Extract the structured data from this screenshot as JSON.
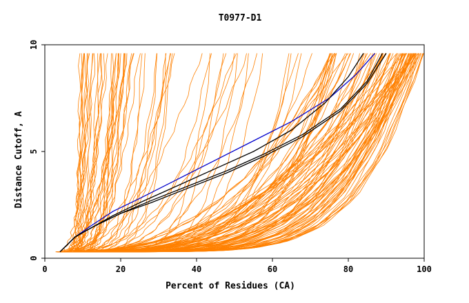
{
  "chart_data": {
    "type": "line",
    "title": "T0977-D1",
    "xlabel": "Percent of Residues (CA)",
    "ylabel": "Distance Cutoff, A",
    "xlim": [
      0,
      100
    ],
    "ylim": [
      0,
      10
    ],
    "x_ticks": [
      "0",
      "20",
      "40",
      "60",
      "80",
      "100"
    ],
    "y_ticks": [
      "0",
      "5",
      "10"
    ],
    "grid": false,
    "legend": "none",
    "colors": {
      "models": "#ff8000",
      "highlight_blue": "#0000cc",
      "highlight_black": "#000000"
    },
    "series_groups": [
      {
        "color": "models",
        "count": 150,
        "endpoint_range_at_cutoff_9_6": [
          9,
          100
        ],
        "note_values": "curves start near x=3-8 at y=0.3 and rise to y=9.6"
      },
      {
        "color": "highlight_blue",
        "count": 1
      },
      {
        "color": "highlight_black",
        "count": 3
      }
    ],
    "series": [
      {
        "color": "#0000cc",
        "x": [
          4,
          8,
          12,
          18,
          25,
          35,
          45,
          55,
          65,
          75,
          82,
          87
        ],
        "y": [
          0.3,
          1.0,
          1.5,
          2.2,
          2.8,
          3.7,
          4.6,
          5.5,
          6.4,
          7.5,
          8.6,
          9.6
        ]
      },
      {
        "color": "#000000",
        "x": [
          4,
          8,
          12,
          18,
          25,
          35,
          45,
          55,
          65,
          74,
          80,
          84
        ],
        "y": [
          0.3,
          1.0,
          1.4,
          2.0,
          2.6,
          3.4,
          4.2,
          5.0,
          6.0,
          7.3,
          8.5,
          9.6
        ]
      },
      {
        "color": "#000000",
        "x": [
          4,
          8,
          13,
          20,
          28,
          38,
          48,
          58,
          68,
          78,
          85,
          89
        ],
        "y": [
          0.3,
          1.0,
          1.5,
          2.1,
          2.7,
          3.4,
          4.1,
          4.9,
          5.8,
          7.0,
          8.3,
          9.6
        ]
      },
      {
        "color": "#000000",
        "x": [
          4,
          8,
          13,
          20,
          28,
          38,
          48,
          58,
          68,
          78,
          85,
          90
        ],
        "y": [
          0.3,
          1.0,
          1.5,
          2.1,
          2.6,
          3.3,
          4.0,
          4.8,
          5.7,
          6.9,
          8.2,
          9.6
        ]
      }
    ]
  }
}
